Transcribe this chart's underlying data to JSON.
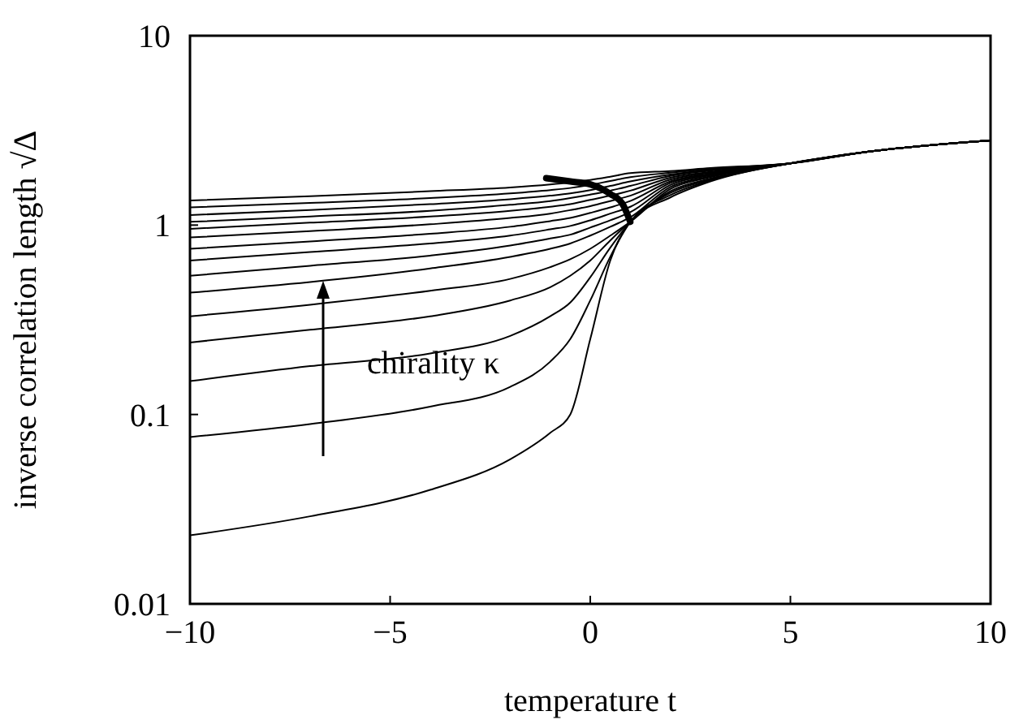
{
  "chart_data": {
    "type": "line",
    "xlabel": "temperature t",
    "ylabel": "inverse correlation length √Δ",
    "log": "y",
    "grid": false,
    "marker": "none",
    "line_style": "solid",
    "x": [
      -10,
      -7,
      -4,
      -2,
      -1,
      -0.5,
      0,
      0.5,
      1,
      2,
      3,
      5,
      7,
      10
    ],
    "xlim": [
      -10,
      10
    ],
    "xticks": [
      {
        "value": -10,
        "label": "−10"
      },
      {
        "value": -5,
        "label": "−5"
      },
      0,
      5,
      10
    ],
    "ylim": [
      0.01,
      10
    ],
    "yticks": [
      0.01,
      0.1,
      1,
      10
    ],
    "annotations": [
      "chirality κ"
    ],
    "series": [
      {
        "color": "#000000",
        "values": [
          0.023,
          0.029,
          0.04,
          0.058,
          0.08,
          0.1,
          0.25,
          0.65,
          1.04,
          1.4,
          1.7,
          2.12,
          2.45,
          2.8
        ]
      },
      {
        "color": "#000000",
        "values": [
          0.076,
          0.089,
          0.11,
          0.14,
          0.19,
          0.25,
          0.4,
          0.68,
          1.04,
          1.44,
          1.72,
          2.12,
          2.45,
          2.8
        ]
      },
      {
        "color": "#000000",
        "values": [
          0.15,
          0.18,
          0.21,
          0.26,
          0.33,
          0.39,
          0.53,
          0.76,
          1.04,
          1.48,
          1.74,
          2.12,
          2.45,
          2.8
        ]
      },
      {
        "color": "#000000",
        "values": [
          0.24,
          0.28,
          0.33,
          0.4,
          0.47,
          0.54,
          0.65,
          0.83,
          1.04,
          1.51,
          1.76,
          2.12,
          2.45,
          2.8
        ]
      },
      {
        "color": "#000000",
        "values": [
          0.33,
          0.38,
          0.45,
          0.52,
          0.6,
          0.66,
          0.75,
          0.88,
          1.04,
          1.55,
          1.79,
          2.12,
          2.45,
          2.8
        ]
      },
      {
        "color": "#000000",
        "values": [
          0.44,
          0.5,
          0.59,
          0.68,
          0.75,
          0.8,
          0.88,
          0.98,
          1.1,
          1.59,
          1.81,
          2.12,
          2.45,
          2.8
        ]
      },
      {
        "color": "#000000",
        "values": [
          0.54,
          0.61,
          0.69,
          0.78,
          0.85,
          0.89,
          0.97,
          1.06,
          1.17,
          1.63,
          1.83,
          2.12,
          2.45,
          2.8
        ]
      },
      {
        "color": "#000000",
        "values": [
          0.65,
          0.72,
          0.8,
          0.88,
          0.95,
          0.99,
          1.06,
          1.15,
          1.25,
          1.67,
          1.85,
          2.12,
          2.45,
          2.8
        ]
      },
      {
        "color": "#000000",
        "values": [
          0.75,
          0.82,
          0.9,
          0.98,
          1.05,
          1.09,
          1.16,
          1.24,
          1.34,
          1.7,
          1.87,
          2.12,
          2.45,
          2.8
        ]
      },
      {
        "color": "#000000",
        "values": [
          0.86,
          0.93,
          1.01,
          1.09,
          1.15,
          1.2,
          1.26,
          1.34,
          1.43,
          1.74,
          1.89,
          2.12,
          2.45,
          2.8
        ]
      },
      {
        "color": "#000000",
        "values": [
          0.955,
          1.03,
          1.11,
          1.19,
          1.25,
          1.29,
          1.36,
          1.43,
          1.52,
          1.78,
          1.91,
          2.12,
          2.45,
          2.8
        ]
      },
      {
        "color": "#000000",
        "values": [
          1.04,
          1.11,
          1.19,
          1.28,
          1.34,
          1.39,
          1.45,
          1.52,
          1.61,
          1.82,
          1.94,
          2.12,
          2.45,
          2.8
        ]
      },
      {
        "color": "#000000",
        "values": [
          1.13,
          1.2,
          1.29,
          1.37,
          1.43,
          1.47,
          1.53,
          1.61,
          1.7,
          1.85,
          1.96,
          2.12,
          2.45,
          2.8
        ]
      },
      {
        "color": "#000000",
        "values": [
          1.24,
          1.31,
          1.39,
          1.47,
          1.53,
          1.57,
          1.63,
          1.71,
          1.79,
          1.89,
          1.98,
          2.12,
          2.45,
          2.8
        ]
      },
      {
        "color": "#000000",
        "values": [
          1.35,
          1.42,
          1.51,
          1.58,
          1.64,
          1.68,
          1.73,
          1.8,
          1.88,
          1.93,
          2.0,
          2.12,
          2.45,
          2.8
        ]
      },
      {
        "color": "#000000",
        "x": [
          -1.1,
          -0.5,
          0,
          0.5,
          0.8,
          1
        ],
        "values": [
          1.77,
          1.7,
          1.64,
          1.46,
          1.3,
          1.04
        ]
      }
    ]
  }
}
